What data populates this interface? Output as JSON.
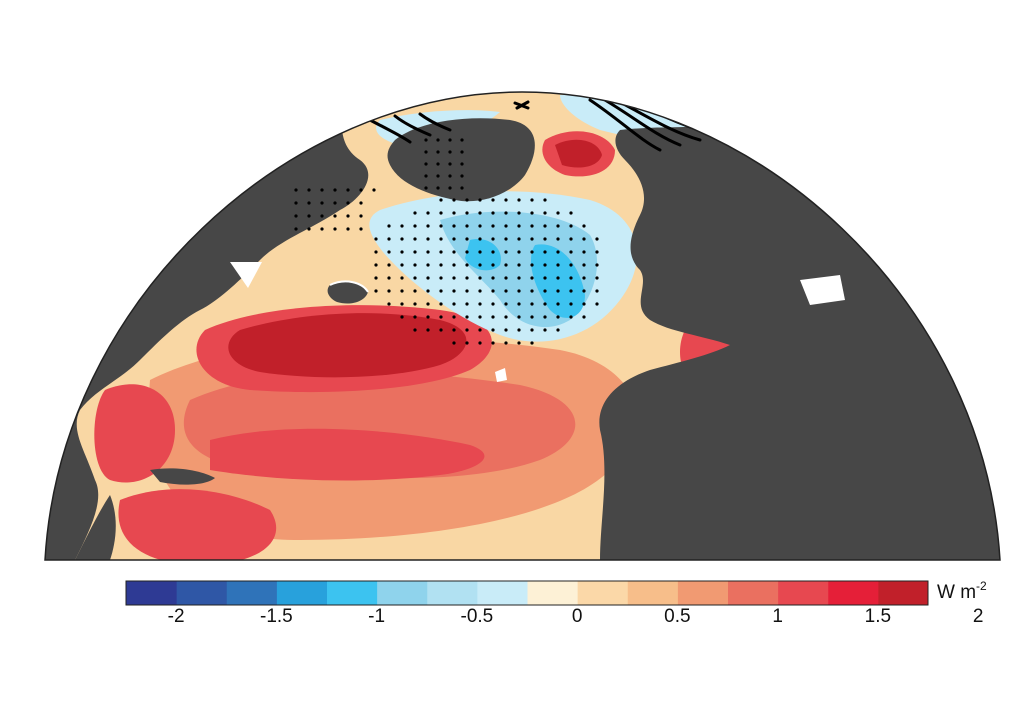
{
  "colorbar": {
    "colors": [
      "#2e3a94",
      "#2f57a6",
      "#2f73b9",
      "#28a1dc",
      "#3cc3f0",
      "#8fd3ec",
      "#b1e1f2",
      "#c9ecf8",
      "#fdf1d6",
      "#fbd8a8",
      "#f7be8a",
      "#f19a72",
      "#ea7060",
      "#e74850",
      "#e51f38",
      "#c1202a"
    ],
    "ticks": [
      "-2",
      "-1.5",
      "-1",
      "-0.5",
      "0",
      "0.5",
      "1",
      "1.5",
      "2"
    ],
    "unit_main": "W m",
    "unit_exp": "-2"
  },
  "map": {
    "land_color": "#474747",
    "ocean_background": "#f9d7a4"
  }
}
